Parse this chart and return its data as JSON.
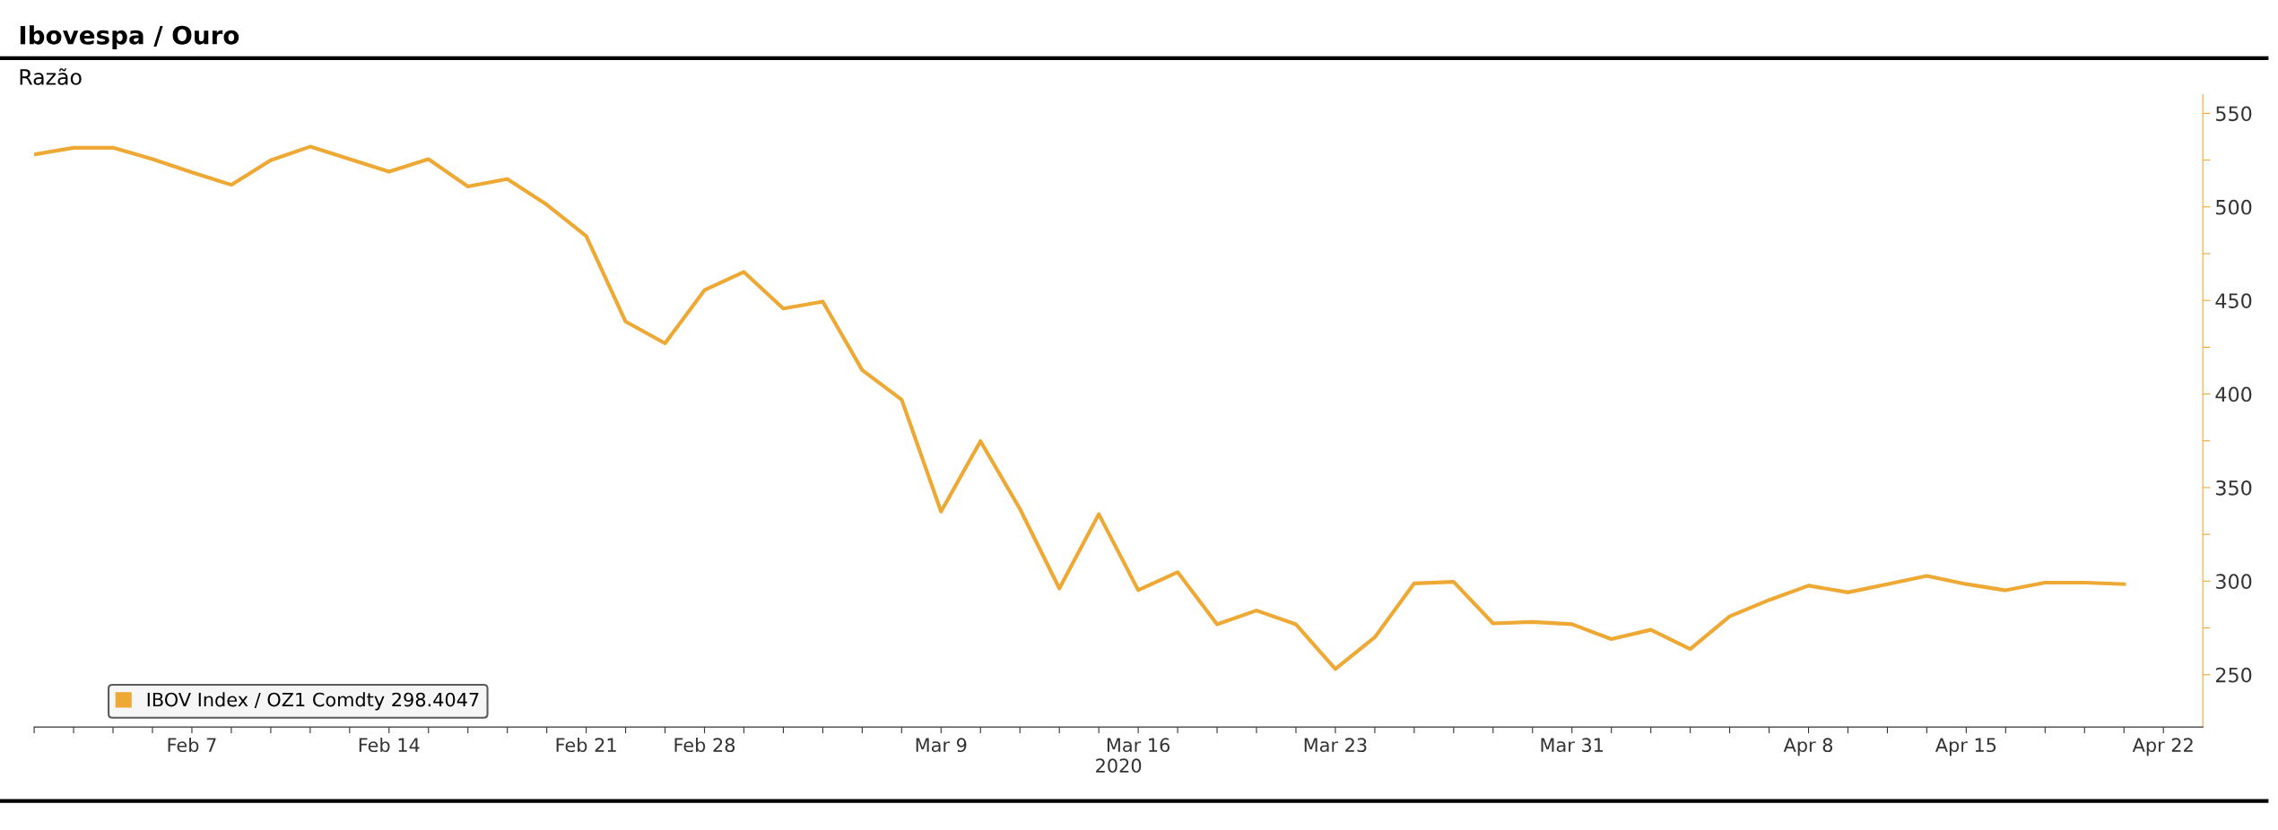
{
  "chart_data": {
    "type": "line",
    "title": "Ibovespa / Ouro",
    "subtitle": "Razão",
    "xlabel": "2020",
    "categories": [
      null,
      null,
      null,
      null,
      "Feb 7",
      null,
      null,
      null,
      null,
      "Feb 14",
      null,
      null,
      null,
      null,
      "Feb 21",
      null,
      null,
      "Feb 28",
      null,
      null,
      null,
      null,
      null,
      "Mar 9",
      null,
      null,
      null,
      null,
      "Mar 16",
      null,
      null,
      null,
      null,
      "Mar 23",
      null,
      null,
      null,
      null,
      null,
      "Mar 31",
      null,
      null,
      null,
      null,
      null,
      "Apr 8",
      null,
      null,
      null,
      "Apr 15",
      null,
      null,
      null,
      null,
      "Apr 22"
    ],
    "series": [
      {
        "name": "IBOV Index / OZ1 Comdty 298.4047",
        "color": "#eea834",
        "values": [
          528,
          531.6,
          531.6,
          525.5,
          518.5,
          511.8,
          524.9,
          532.2,
          525.5,
          518.8,
          525.5,
          510.9,
          514.9,
          501.2,
          484.4,
          438.7,
          427.1,
          455.5,
          465.2,
          445.7,
          449.4,
          412.8,
          397,
          337.2,
          374.8,
          338.6,
          296.1,
          335.8,
          295.2,
          304.8,
          276.9,
          284.3,
          276.9,
          253,
          270,
          298.8,
          299.6,
          277.4,
          278.2,
          277,
          269,
          274,
          263.7,
          281.2,
          289.9,
          297.6,
          294,
          298.4,
          302.8,
          298.4,
          295.1,
          299.2,
          299.2,
          298.4,
          null
        ]
      }
    ],
    "ylim": [
      222,
      560
    ],
    "yticks": [
      250,
      {
        "value": 275,
        "label": null
      },
      300,
      {
        "value": 325,
        "label": null
      },
      350,
      {
        "value": 375,
        "label": null
      },
      400,
      {
        "value": 425,
        "label": null
      },
      450,
      {
        "value": 475,
        "label": null
      },
      500,
      {
        "value": 525,
        "label": null
      },
      550
    ],
    "grid": false,
    "legend": "bottom left",
    "marker": "none",
    "line_style": "solid"
  }
}
